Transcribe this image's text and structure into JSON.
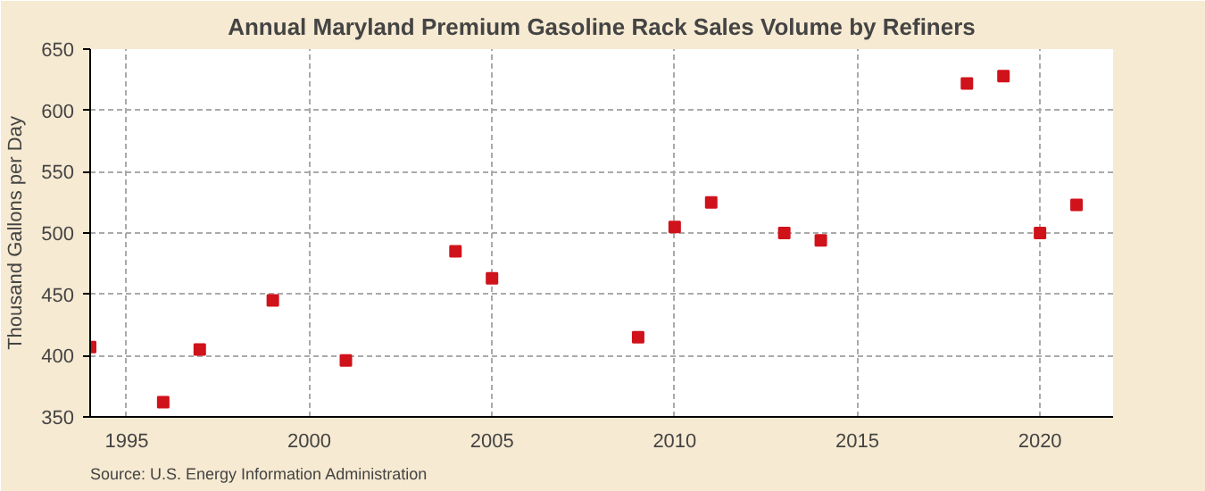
{
  "chart_data": {
    "type": "scatter",
    "title": "Annual Maryland Premium Gasoline Rack Sales Volume by Refiners",
    "ylabel": "Thousand Gallons per Day",
    "x": [
      1994,
      1996,
      1997,
      1999,
      2001,
      2004,
      2005,
      2009,
      2010,
      2011,
      2013,
      2014,
      2018,
      2019,
      2020,
      2021
    ],
    "series": [
      {
        "color": "#d0121b",
        "values": [
          407,
          362,
          405,
          445,
          396,
          485,
          463,
          415,
          505,
          525,
          500,
          494,
          622,
          628,
          500,
          523
        ]
      }
    ],
    "xlim": [
      1994,
      2022
    ],
    "xticks": [
      1995,
      2000,
      2005,
      2010,
      2015,
      2020
    ],
    "ylim": [
      350,
      650
    ],
    "yticks": [
      350,
      400,
      450,
      500,
      550,
      600,
      650
    ],
    "grid": true,
    "marker": "square",
    "annotations": [
      "Source: U.S. Energy Information Administration"
    ]
  }
}
